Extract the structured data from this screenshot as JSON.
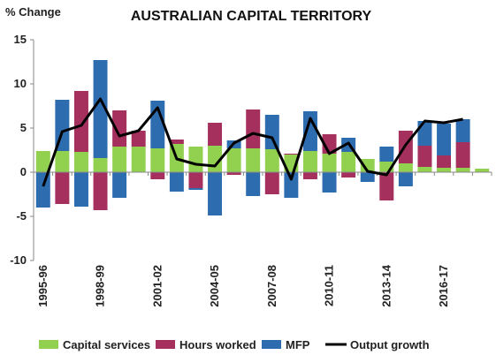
{
  "chart_data": {
    "type": "bar",
    "stacked": true,
    "title": "AUSTRALIAN CAPITAL TERRITORY",
    "ylabel": "% Change",
    "xlabel": "",
    "ylim": [
      -10,
      15
    ],
    "yticks": [
      -10,
      -5,
      0,
      5,
      10,
      15
    ],
    "categories": [
      "1995-96",
      "1996-97",
      "1997-98",
      "1998-99",
      "1999-00",
      "2000-01",
      "2001-02",
      "2002-03",
      "2003-04",
      "2004-05",
      "2005-06",
      "2006-07",
      "2007-08",
      "2008-09",
      "2009-10",
      "2010-11",
      "2011-12",
      "2012-13",
      "2013-14",
      "2014-15",
      "2015-16",
      "2016-17",
      "2017-18",
      "2018-19"
    ],
    "visible_tick_labels": [
      "1995-96",
      "1998-99",
      "2001-02",
      "2004-05",
      "2007-08",
      "2010-11",
      "2013-14",
      "2016-17"
    ],
    "series": [
      {
        "name": "Capital services",
        "color": "#92d050",
        "values": [
          2.4,
          2.4,
          2.3,
          1.6,
          2.9,
          2.9,
          2.7,
          3.2,
          2.9,
          3.0,
          2.7,
          2.7,
          2.6,
          2.0,
          2.4,
          2.1,
          2.3,
          1.5,
          1.2,
          1.0,
          0.6,
          0.5,
          0.5,
          0.4
        ]
      },
      {
        "name": "Hours worked",
        "color": "#a5305e",
        "values": [
          0.0,
          -3.6,
          6.9,
          -4.3,
          4.1,
          1.8,
          -0.8,
          0.5,
          -1.8,
          2.6,
          -0.3,
          4.4,
          -2.5,
          0.1,
          -0.8,
          2.2,
          -0.6,
          0.0,
          -3.2,
          3.7,
          2.4,
          1.4,
          2.9,
          0.0
        ]
      },
      {
        "name": "MFP",
        "color": "#2e6cb0",
        "values": [
          -4.0,
          5.8,
          -3.9,
          11.1,
          -2.9,
          0.0,
          5.4,
          -2.2,
          -0.2,
          -4.9,
          0.9,
          -2.7,
          3.9,
          -2.9,
          4.5,
          -2.3,
          1.6,
          -1.1,
          1.7,
          -1.6,
          2.8,
          3.6,
          2.6,
          0.0
        ]
      },
      {
        "name": "Output growth",
        "color": "#000000",
        "type": "line",
        "values": [
          -1.6,
          4.6,
          5.3,
          8.3,
          4.1,
          4.7,
          7.3,
          1.5,
          0.9,
          0.7,
          3.3,
          4.4,
          3.9,
          -0.8,
          6.1,
          2.1,
          3.3,
          0.1,
          -0.3,
          3.1,
          5.8,
          5.6,
          6.0,
          null
        ]
      }
    ],
    "legend": {
      "placement": "bottom"
    },
    "grid": false
  }
}
